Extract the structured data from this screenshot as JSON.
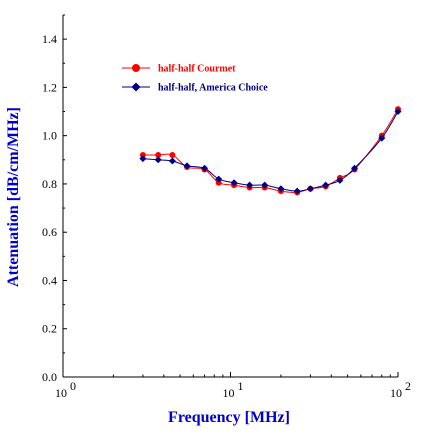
{
  "chart_data": {
    "type": "line",
    "x_scale": "log",
    "xlabel": "Frequency [MHz]",
    "ylabel": "Attenuation [dB/cm/MHz]",
    "xlim": [
      1,
      100
    ],
    "ylim": [
      0,
      1.5
    ],
    "x_ticks": [
      {
        "value": 1,
        "base": "10",
        "exp": "0"
      },
      {
        "value": 10,
        "base": "10",
        "exp": "1"
      },
      {
        "value": 100,
        "base": "10",
        "exp": "2"
      }
    ],
    "y_ticks": [
      "0.0",
      "0.2",
      "0.4",
      "0.6",
      "0.8",
      "1.0",
      "1.2",
      "1.4"
    ],
    "grid": false,
    "legend_position": "top-left",
    "series": [
      {
        "name": "half-half Courmet",
        "color": "#ff0000",
        "line_color": "#ff0000",
        "marker": "circle",
        "x": [
          3,
          3.7,
          4.5,
          5.5,
          7,
          8.5,
          10.5,
          13,
          16,
          20,
          25,
          30,
          37,
          45,
          55,
          80,
          100
        ],
        "y": [
          0.92,
          0.92,
          0.92,
          0.87,
          0.86,
          0.805,
          0.795,
          0.785,
          0.785,
          0.77,
          0.765,
          0.78,
          0.79,
          0.825,
          0.86,
          1.0,
          1.11
        ]
      },
      {
        "name": "half-half, America Choice",
        "color": "#000080",
        "line_color": "#000080",
        "marker": "diamond",
        "x": [
          3,
          3.7,
          4.5,
          5.5,
          7,
          8.5,
          10.5,
          13,
          16,
          20,
          25,
          30,
          37,
          45,
          55,
          80,
          100
        ],
        "y": [
          0.905,
          0.9,
          0.895,
          0.875,
          0.865,
          0.82,
          0.805,
          0.795,
          0.795,
          0.78,
          0.77,
          0.78,
          0.795,
          0.815,
          0.865,
          0.99,
          1.1
        ]
      }
    ]
  }
}
